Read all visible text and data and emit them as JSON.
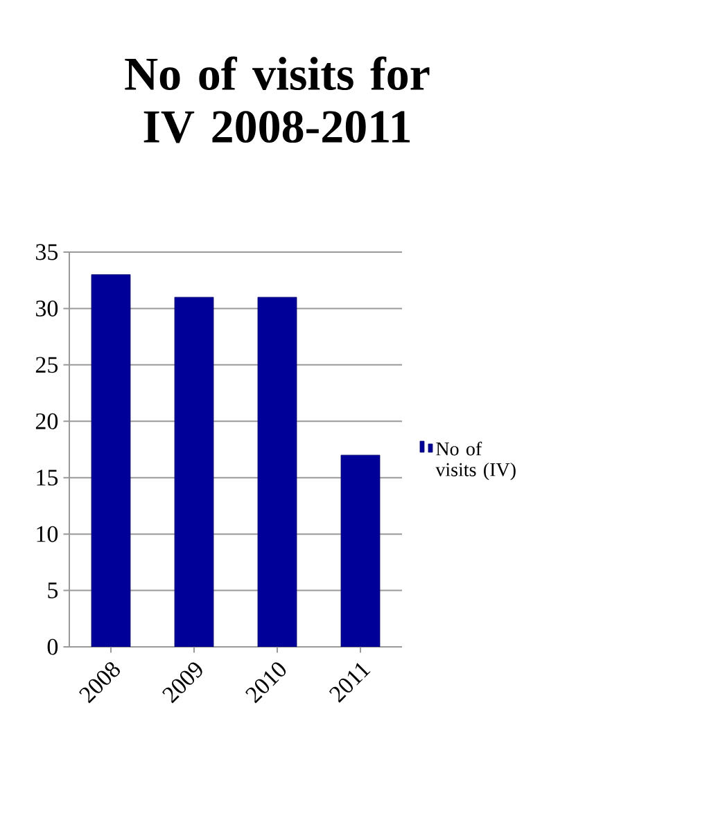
{
  "chart_data": {
    "type": "bar",
    "title": "No of visits for IV 2008-2011",
    "categories": [
      "2008",
      "2009",
      "2010",
      "2011"
    ],
    "series": [
      {
        "name": "No of visits (IV)",
        "color": "#000099",
        "values": [
          33,
          31,
          31,
          17
        ]
      }
    ],
    "ylim": [
      0,
      35
    ],
    "yticks": [
      0,
      5,
      10,
      15,
      20,
      25,
      30,
      35
    ],
    "grid": "y",
    "legend": "right"
  }
}
